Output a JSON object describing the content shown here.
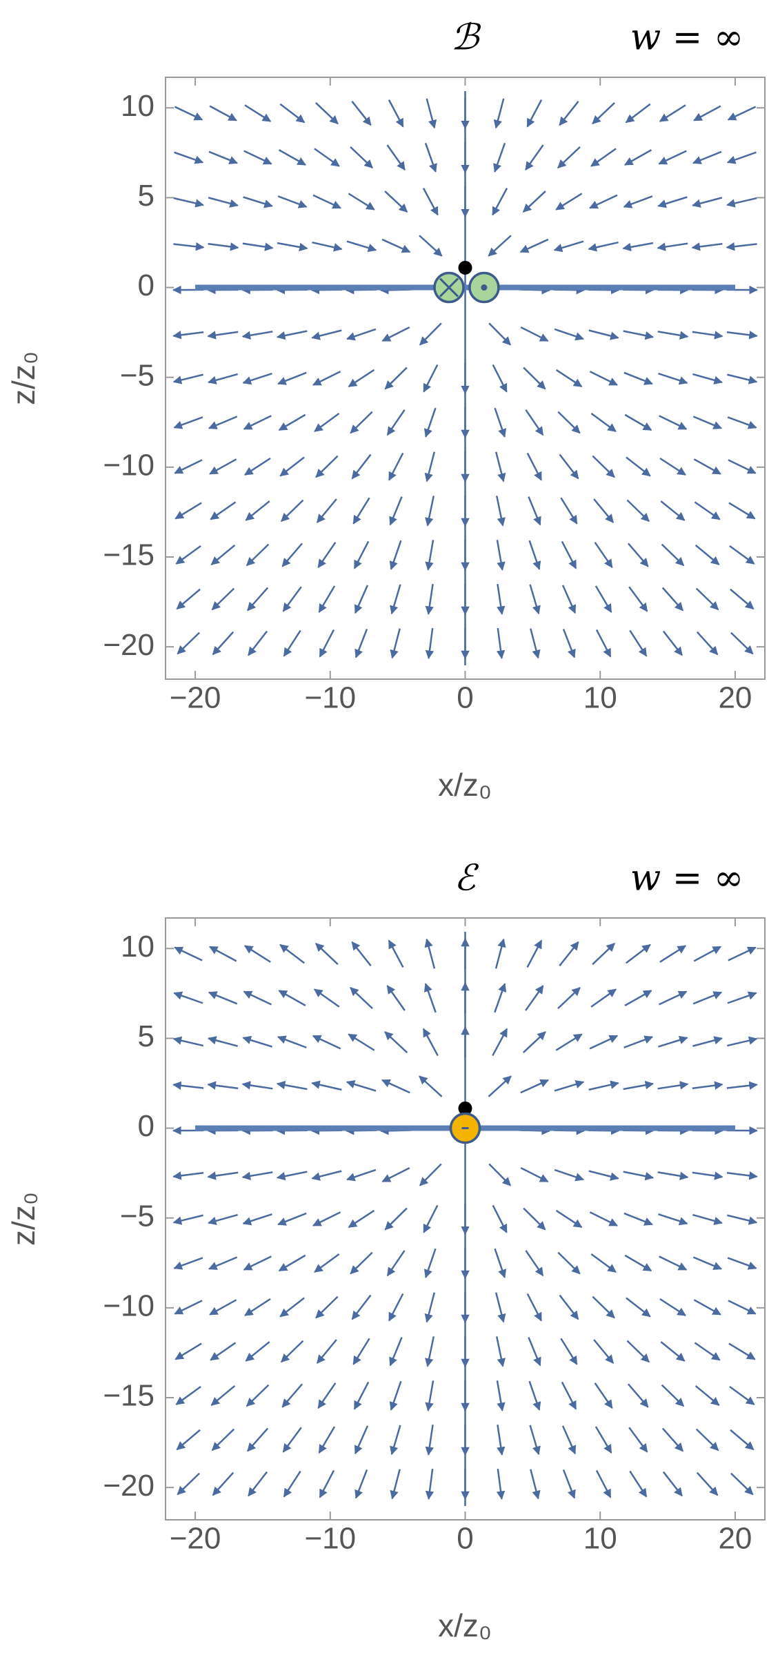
{
  "chart_data": [
    {
      "type": "streamplot",
      "title": "ℬ",
      "annotation": "w = ∞",
      "xlabel": "x/z₀",
      "ylabel": "z/z₀",
      "xlim": [
        -22.2,
        22.2
      ],
      "ylim": [
        -21.8,
        11.7
      ],
      "xticks": [
        {
          "value": -20,
          "label": "−20"
        },
        {
          "value": -10,
          "label": "−10"
        },
        0,
        10,
        20
      ],
      "yticks": [
        10,
        5,
        0,
        {
          "value": -5,
          "label": "−5"
        },
        {
          "value": -10,
          "label": "−10"
        },
        {
          "value": -15,
          "label": "−15"
        },
        {
          "value": -20,
          "label": "−20"
        }
      ],
      "color": "#4a6aa0",
      "flow": "through",
      "interface_z": 0,
      "sources": {
        "x": [
          -1.2,
          1.4
        ],
        "y": [
          0,
          0
        ],
        "symbols": [
          "cross",
          "dot"
        ],
        "fill": "#a8d59b"
      },
      "probe": {
        "x": 0,
        "y": 1.1
      }
    },
    {
      "type": "streamplot",
      "title": "ℰ",
      "annotation": "w = ∞",
      "xlabel": "x/z₀",
      "ylabel": "z/z₀",
      "xlim": [
        -22.2,
        22.2
      ],
      "ylim": [
        -21.8,
        11.7
      ],
      "xticks": [
        {
          "value": -20,
          "label": "−20"
        },
        {
          "value": -10,
          "label": "−10"
        },
        0,
        10,
        20
      ],
      "yticks": [
        10,
        5,
        0,
        {
          "value": -5,
          "label": "−5"
        },
        {
          "value": -10,
          "label": "−10"
        },
        {
          "value": -15,
          "label": "−15"
        },
        {
          "value": -20,
          "label": "−20"
        }
      ],
      "color": "#4a6aa0",
      "flow": "outward",
      "interface_z": 0,
      "sources": {
        "x": [
          0
        ],
        "y": [
          0
        ],
        "symbols": [
          "minus"
        ],
        "fill": "#f4b400"
      },
      "probe": {
        "x": 0,
        "y": 1.1
      }
    }
  ]
}
